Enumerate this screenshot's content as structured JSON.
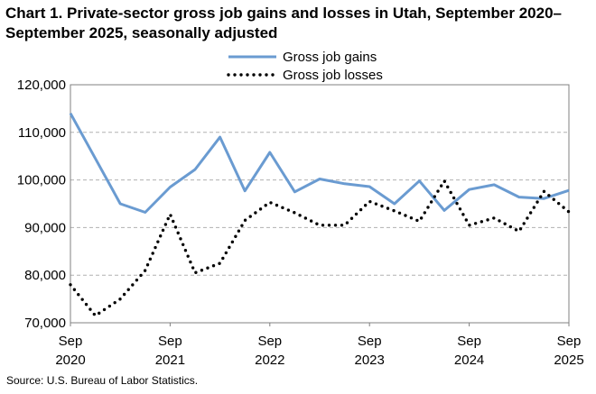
{
  "chart_data": {
    "type": "line",
    "title": "Chart 1. Private-sector gross job gains and losses in Utah, September 2020–September 2025, seasonally adjusted",
    "source": "Source: U.S. Bureau of Labor Statistics.",
    "xlabel": "",
    "ylabel": "",
    "ylim": [
      70000,
      120000
    ],
    "yticks": [
      "70,000",
      "80,000",
      "90,000",
      "100,000",
      "110,000",
      "120,000"
    ],
    "xticks": [
      {
        "month": "Sep",
        "year": "2020"
      },
      {
        "month": "Sep",
        "year": "2021"
      },
      {
        "month": "Sep",
        "year": "2022"
      },
      {
        "month": "Sep",
        "year": "2023"
      },
      {
        "month": "Sep",
        "year": "2024"
      },
      {
        "month": "Sep",
        "year": "2025"
      }
    ],
    "grid": "horizontal dashed",
    "legend_position": "top-center",
    "x": [
      "Sep 2020",
      "Dec 2020",
      "Mar 2021",
      "Jun 2021",
      "Sep 2021",
      "Dec 2021",
      "Mar 2022",
      "Jun 2022",
      "Sep 2022",
      "Dec 2022",
      "Mar 2023",
      "Jun 2023",
      "Sep 2023",
      "Dec 2023",
      "Mar 2024",
      "Jun 2024",
      "Sep 2024",
      "Dec 2024",
      "Mar 2025",
      "Jun 2025",
      "Sep 2025"
    ],
    "series": [
      {
        "name": "Gross job gains",
        "color": "#6a9bd1",
        "style": "solid",
        "values": [
          114000,
          104500,
          95000,
          93200,
          98500,
          102200,
          109000,
          97700,
          105800,
          97500,
          100200,
          99200,
          98600,
          95000,
          99800,
          93600,
          98000,
          99000,
          96400,
          96100,
          97800
        ]
      },
      {
        "name": "Gross job losses",
        "color": "#000000",
        "style": "dotted",
        "values": [
          78000,
          71500,
          75000,
          81000,
          92800,
          80500,
          82500,
          91500,
          95300,
          93100,
          90500,
          90500,
          95500,
          93500,
          91300,
          99800,
          90500,
          92000,
          89200,
          97600,
          93300
        ]
      }
    ]
  }
}
